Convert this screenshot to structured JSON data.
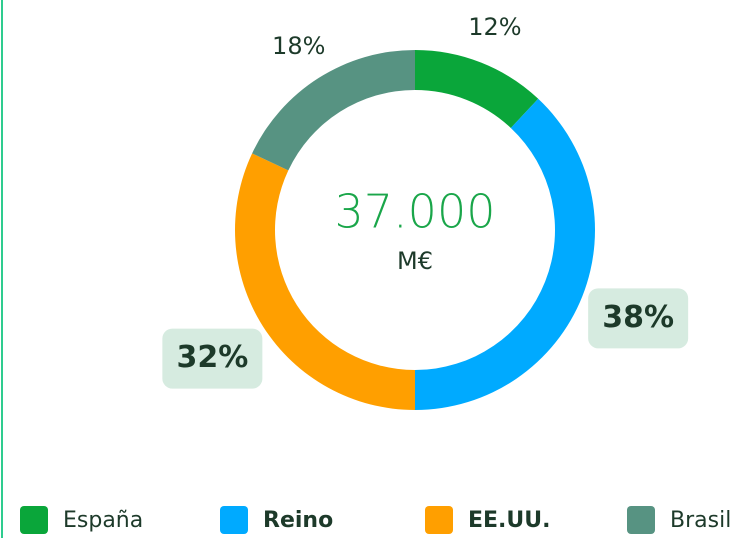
{
  "chart_data": {
    "type": "donut",
    "categories": [
      "España",
      "Reino",
      "EE.UU.",
      "Brasil"
    ],
    "values": [
      12,
      38,
      32,
      18
    ],
    "value_labels": [
      "12%",
      "38%",
      "32%",
      "18%"
    ],
    "colors": [
      "#0aa63a",
      "#00aaff",
      "#ff9f00",
      "#579382"
    ],
    "highlighted": [
      false,
      true,
      true,
      false
    ],
    "center_value": "37.000",
    "center_unit": "M€"
  }
}
